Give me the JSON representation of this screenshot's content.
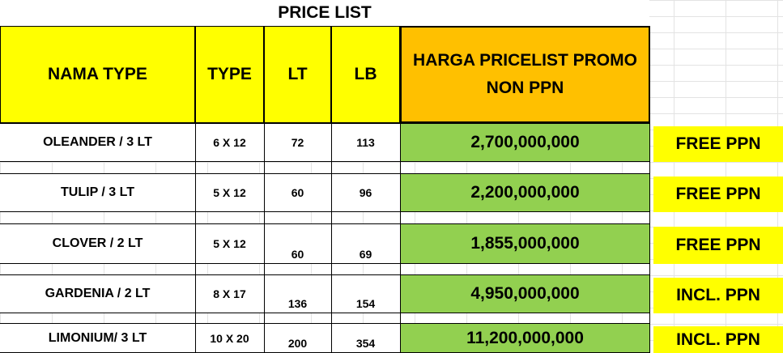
{
  "title": "PRICE LIST",
  "headers": {
    "name": "NAMA TYPE",
    "type": "TYPE",
    "lt": "LT",
    "lb": "LB",
    "price_line1": "HARGA PRICELIST PROMO",
    "price_line2": "NON PPN"
  },
  "rows": [
    {
      "name": "OLEANDER / 3 LT",
      "type": "6 X 12",
      "lt": "72",
      "lb": "113",
      "price": "2,700,000,000",
      "tag": "FREE PPN"
    },
    {
      "name": "TULIP / 3 LT",
      "type": "5 X 12",
      "lt": "60",
      "lb": "96",
      "price": "2,200,000,000",
      "tag": "FREE PPN"
    },
    {
      "name": "CLOVER / 2 LT",
      "type": "5 X 12",
      "lt": "60",
      "lb": "69",
      "price": "1,855,000,000",
      "tag": "FREE PPN"
    },
    {
      "name": "GARDENIA / 2 LT",
      "type": "8 X 17",
      "lt": "136",
      "lb": "154",
      "price": "4,950,000,000",
      "tag": "INCL. PPN"
    },
    {
      "name": "LIMONIUM/ 3 LT",
      "type": "10 X 20",
      "lt": "200",
      "lb": "354",
      "price": "11,200,000,000",
      "tag": "INCL. PPN"
    }
  ],
  "colors": {
    "header_yellow": "#ffff00",
    "price_header_orange": "#ffc000",
    "price_green": "#92d050",
    "tag_yellow": "#ffff00"
  }
}
